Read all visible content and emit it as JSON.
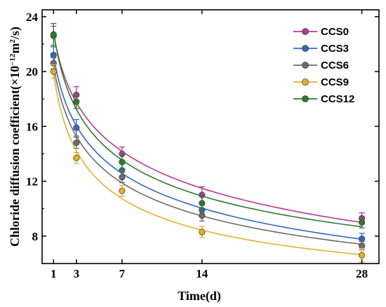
{
  "chart_data": {
    "type": "line",
    "xlabel": "Time(d)",
    "ylabel_main": "Chloride diffusion coefficient(×10",
    "ylabel_sup1": "−12",
    "ylabel_unit": "m",
    "ylabel_sup2": "2",
    "ylabel_end": "/s)",
    "x_ticks": [
      1,
      3,
      7,
      14,
      28
    ],
    "y_ticks": [
      8,
      12,
      16,
      20,
      24
    ],
    "xlim": [
      0,
      29.5
    ],
    "ylim": [
      6,
      24.5
    ],
    "legend_position": "top-right",
    "x": [
      1,
      3,
      7,
      14,
      28
    ],
    "series": [
      {
        "name": "CCS0",
        "color": "#b5389a",
        "values": [
          22.6,
          18.3,
          14.0,
          11.0,
          9.3
        ],
        "err": [
          0.7,
          0.6,
          0.5,
          0.6,
          0.4
        ]
      },
      {
        "name": "CCS3",
        "color": "#3466c2",
        "values": [
          21.2,
          15.9,
          12.8,
          9.9,
          7.8
        ],
        "err": [
          0.6,
          0.6,
          0.5,
          0.5,
          0.4
        ]
      },
      {
        "name": "CCS6",
        "color": "#6b6b6b",
        "values": [
          20.6,
          14.8,
          12.3,
          9.5,
          7.3
        ],
        "err": [
          0.4,
          0.4,
          0.4,
          0.4,
          0.3
        ]
      },
      {
        "name": "CCS9",
        "color": "#e0b030",
        "values": [
          20.0,
          13.7,
          11.3,
          8.3,
          6.6
        ],
        "err": [
          0.5,
          0.4,
          0.4,
          0.4,
          0.5
        ]
      },
      {
        "name": "CCS12",
        "color": "#2c7a2c",
        "values": [
          22.7,
          17.8,
          13.4,
          10.4,
          9.0
        ],
        "err": [
          0.8,
          0.5,
          0.5,
          0.5,
          0.4
        ]
      }
    ]
  }
}
